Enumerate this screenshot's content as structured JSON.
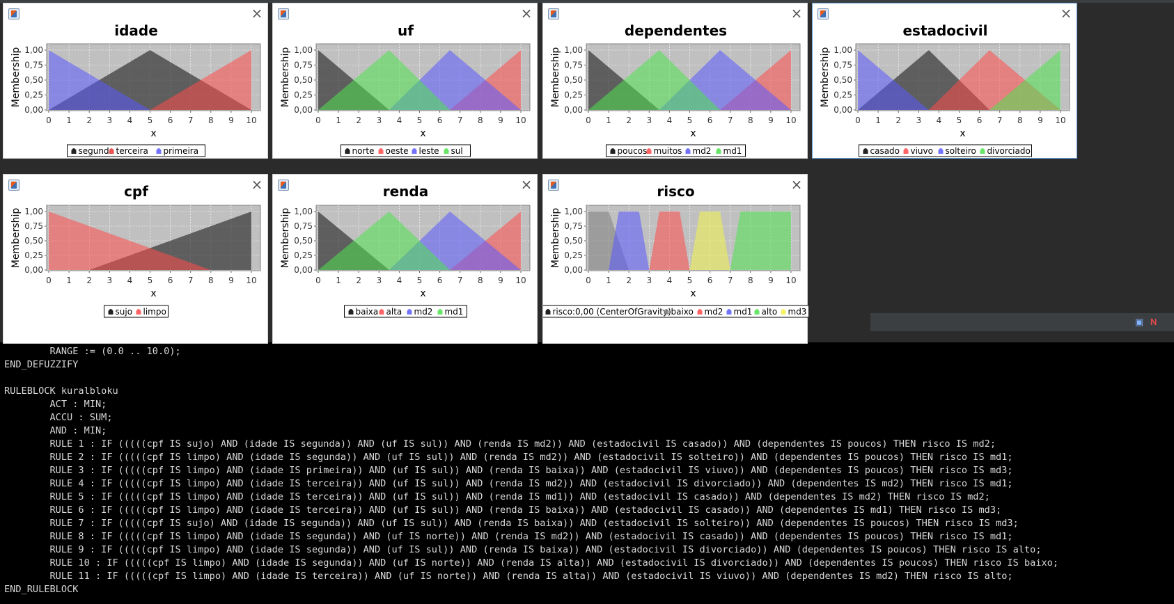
{
  "colors": {
    "plot_bg": "#c0c0c0",
    "grid": "#ffffff",
    "black": "#222222",
    "red": "#ff4a4a",
    "blue": "#5a5aff",
    "green": "#4fe24f",
    "gray": "#7e7e7e",
    "yellow": "#f2f24a"
  },
  "status_icons": [
    "monitor-icon",
    "netbeans-icon"
  ],
  "windows": [
    {
      "id": "idade",
      "close": "×",
      "chart_data": {
        "type": "area",
        "title": "idade",
        "xlabel": "x",
        "ylabel": "Membership",
        "xlim": [
          0,
          10
        ],
        "ylim": [
          0,
          1
        ],
        "x_ticks": [
          "0",
          "1",
          "2",
          "3",
          "4",
          "5",
          "6",
          "7",
          "8",
          "9",
          "10"
        ],
        "y_ticks": [
          "0,00",
          "0,25",
          "0,50",
          "0,75",
          "1,00"
        ],
        "series": [
          {
            "name": "segunda",
            "color": "black",
            "points": [
              [
                0,
                0
              ],
              [
                5,
                1
              ],
              [
                10,
                0
              ]
            ]
          },
          {
            "name": "terceira",
            "color": "red",
            "points": [
              [
                5,
                0
              ],
              [
                10,
                1
              ]
            ]
          },
          {
            "name": "primeira",
            "color": "blue",
            "points": [
              [
                0,
                1
              ],
              [
                5,
                0
              ]
            ]
          }
        ],
        "legend": [
          "segunda",
          "terceira",
          "primeira"
        ]
      }
    },
    {
      "id": "uf",
      "close": "×",
      "chart_data": {
        "type": "area",
        "title": "uf",
        "xlabel": "x",
        "ylabel": "Membership",
        "xlim": [
          0,
          10
        ],
        "ylim": [
          0,
          1
        ],
        "x_ticks": [
          "0",
          "1",
          "2",
          "3",
          "4",
          "5",
          "6",
          "7",
          "8",
          "9",
          "10"
        ],
        "y_ticks": [
          "0,00",
          "0,25",
          "0,50",
          "0,75",
          "1,00"
        ],
        "series": [
          {
            "name": "norte",
            "color": "black",
            "points": [
              [
                0,
                1
              ],
              [
                3.5,
                0
              ]
            ]
          },
          {
            "name": "oeste",
            "color": "red",
            "points": [
              [
                6.5,
                0
              ],
              [
                10,
                1
              ]
            ]
          },
          {
            "name": "leste",
            "color": "blue",
            "points": [
              [
                3.5,
                0
              ],
              [
                6.5,
                1
              ],
              [
                10,
                0
              ]
            ]
          },
          {
            "name": "sul",
            "color": "green",
            "points": [
              [
                0,
                0
              ],
              [
                3.5,
                1
              ],
              [
                6.5,
                0
              ]
            ]
          }
        ],
        "legend": [
          "norte",
          "oeste",
          "leste",
          "sul"
        ]
      }
    },
    {
      "id": "dependentes",
      "close": "×",
      "chart_data": {
        "type": "area",
        "title": "dependentes",
        "xlabel": "x",
        "ylabel": "Membership",
        "xlim": [
          0,
          10
        ],
        "ylim": [
          0,
          1
        ],
        "x_ticks": [
          "0",
          "1",
          "2",
          "3",
          "4",
          "5",
          "6",
          "7",
          "8",
          "9",
          "10"
        ],
        "y_ticks": [
          "0,00",
          "0,25",
          "0,50",
          "0,75",
          "1,00"
        ],
        "series": [
          {
            "name": "poucos",
            "color": "black",
            "points": [
              [
                0,
                1
              ],
              [
                3.5,
                0
              ]
            ]
          },
          {
            "name": "muitos",
            "color": "red",
            "points": [
              [
                6.5,
                0
              ],
              [
                10,
                1
              ]
            ]
          },
          {
            "name": "md2",
            "color": "blue",
            "points": [
              [
                3.5,
                0
              ],
              [
                6.5,
                1
              ],
              [
                10,
                0
              ]
            ]
          },
          {
            "name": "md1",
            "color": "green",
            "points": [
              [
                0,
                0
              ],
              [
                3.5,
                1
              ],
              [
                6.5,
                0
              ]
            ]
          }
        ],
        "legend": [
          "poucos",
          "muitos",
          "md2",
          "md1"
        ]
      }
    },
    {
      "id": "estadocivil",
      "close": "×",
      "active": true,
      "chart_data": {
        "type": "area",
        "title": "estadocivil",
        "xlabel": "x",
        "ylabel": "Membership",
        "xlim": [
          0,
          10
        ],
        "ylim": [
          0,
          1
        ],
        "x_ticks": [
          "0",
          "1",
          "2",
          "3",
          "4",
          "5",
          "6",
          "7",
          "8",
          "9",
          "10"
        ],
        "y_ticks": [
          "0,00",
          "0,25",
          "0,50",
          "0,75",
          "1,00"
        ],
        "series": [
          {
            "name": "casado",
            "color": "black",
            "points": [
              [
                0,
                0
              ],
              [
                3.5,
                1
              ],
              [
                6.5,
                0
              ]
            ]
          },
          {
            "name": "viuvo",
            "color": "red",
            "points": [
              [
                3.5,
                0
              ],
              [
                6.5,
                1
              ],
              [
                10,
                0
              ]
            ]
          },
          {
            "name": "solteiro",
            "color": "blue",
            "points": [
              [
                0,
                1
              ],
              [
                3.5,
                0
              ]
            ]
          },
          {
            "name": "divorciado",
            "color": "green",
            "points": [
              [
                6.5,
                0
              ],
              [
                10,
                1
              ]
            ]
          }
        ],
        "legend": [
          "casado",
          "viuvo",
          "solteiro",
          "divorciado"
        ]
      }
    },
    {
      "id": "cpf",
      "close": "×",
      "chart_data": {
        "type": "area",
        "title": "cpf",
        "xlabel": "x",
        "ylabel": "Membership",
        "xlim": [
          0,
          10
        ],
        "ylim": [
          0,
          1
        ],
        "x_ticks": [
          "0",
          "1",
          "2",
          "3",
          "4",
          "5",
          "6",
          "7",
          "8",
          "9",
          "10"
        ],
        "y_ticks": [
          "0,00",
          "0,25",
          "0,50",
          "0,75",
          "1,00"
        ],
        "series": [
          {
            "name": "sujo",
            "color": "black",
            "points": [
              [
                2,
                0
              ],
              [
                10,
                1
              ]
            ]
          },
          {
            "name": "limpo",
            "color": "red",
            "points": [
              [
                0,
                1
              ],
              [
                8,
                0
              ]
            ]
          }
        ],
        "legend": [
          "sujo",
          "limpo"
        ]
      }
    },
    {
      "id": "renda",
      "close": "×",
      "chart_data": {
        "type": "area",
        "title": "renda",
        "xlabel": "x",
        "ylabel": "Membership",
        "xlim": [
          0,
          10
        ],
        "ylim": [
          0,
          1
        ],
        "x_ticks": [
          "0",
          "1",
          "2",
          "3",
          "4",
          "5",
          "6",
          "7",
          "8",
          "9",
          "10"
        ],
        "y_ticks": [
          "0,00",
          "0,25",
          "0,50",
          "0,75",
          "1,00"
        ],
        "series": [
          {
            "name": "baixa",
            "color": "black",
            "points": [
              [
                0,
                1
              ],
              [
                3.5,
                0
              ]
            ]
          },
          {
            "name": "alta",
            "color": "red",
            "points": [
              [
                6.5,
                0
              ],
              [
                10,
                1
              ]
            ]
          },
          {
            "name": "md2",
            "color": "blue",
            "points": [
              [
                3.5,
                0
              ],
              [
                6.5,
                1
              ],
              [
                10,
                0
              ]
            ]
          },
          {
            "name": "md1",
            "color": "green",
            "points": [
              [
                0,
                0
              ],
              [
                3.5,
                1
              ],
              [
                6.5,
                0
              ]
            ]
          }
        ],
        "legend": [
          "baixa",
          "alta",
          "md2",
          "md1"
        ]
      }
    },
    {
      "id": "risco",
      "close": "×",
      "chart_data": {
        "type": "area",
        "title": "risco",
        "xlabel": "x",
        "ylabel": "Membership",
        "xlim": [
          0,
          10
        ],
        "ylim": [
          0,
          1
        ],
        "x_ticks": [
          "0",
          "1",
          "2",
          "3",
          "4",
          "5",
          "6",
          "7",
          "8",
          "9",
          "10"
        ],
        "y_ticks": [
          "0,00",
          "0,25",
          "0,50",
          "0,75",
          "1,00"
        ],
        "series": [
          {
            "name": "risco:0,00 (CenterOfGravity)",
            "color": "black",
            "points": [
              [
                0,
                0
              ],
              [
                10,
                0
              ]
            ]
          },
          {
            "name": "baixo",
            "color": "gray",
            "points": [
              [
                0,
                1
              ],
              [
                1,
                1
              ],
              [
                2,
                0
              ]
            ]
          },
          {
            "name": "md2",
            "color": "red",
            "points": [
              [
                3,
                0
              ],
              [
                3.5,
                1
              ],
              [
                4.5,
                1
              ],
              [
                5,
                0
              ]
            ]
          },
          {
            "name": "md1",
            "color": "blue",
            "points": [
              [
                1,
                0
              ],
              [
                1.5,
                1
              ],
              [
                2.5,
                1
              ],
              [
                3,
                0
              ]
            ]
          },
          {
            "name": "alto",
            "color": "green",
            "points": [
              [
                7,
                0
              ],
              [
                7.5,
                1
              ],
              [
                10,
                1
              ]
            ]
          },
          {
            "name": "md3",
            "color": "yellow",
            "points": [
              [
                5,
                0
              ],
              [
                5.5,
                1
              ],
              [
                6.5,
                1
              ],
              [
                7,
                0
              ]
            ]
          }
        ],
        "legend": [
          "risco:0,00 (CenterOfGravity)",
          "baixo",
          "md2",
          "md1",
          "alto",
          "md3"
        ]
      }
    }
  ],
  "console": {
    "lines": [
      "        RANGE := (0.0 .. 10.0);",
      "END_DEFUZZIFY",
      "",
      "RULEBLOCK kuralbloku",
      "        ACT : MIN;",
      "        ACCU : SUM;",
      "        AND : MIN;",
      "        RULE 1 : IF (((((cpf IS sujo) AND (idade IS segunda)) AND (uf IS sul)) AND (renda IS md2)) AND (estadocivil IS casado)) AND (dependentes IS poucos) THEN risco IS md2;",
      "        RULE 2 : IF (((((cpf IS limpo) AND (idade IS segunda)) AND (uf IS sul)) AND (renda IS md2)) AND (estadocivil IS solteiro)) AND (dependentes IS poucos) THEN risco IS md1;",
      "        RULE 3 : IF (((((cpf IS limpo) AND (idade IS primeira)) AND (uf IS sul)) AND (renda IS baixa)) AND (estadocivil IS viuvo)) AND (dependentes IS poucos) THEN risco IS md3;",
      "        RULE 4 : IF (((((cpf IS limpo) AND (idade IS terceira)) AND (uf IS sul)) AND (renda IS md2)) AND (estadocivil IS divorciado)) AND (dependentes IS md2) THEN risco IS md1;",
      "        RULE 5 : IF (((((cpf IS limpo) AND (idade IS terceira)) AND (uf IS sul)) AND (renda IS md1)) AND (estadocivil IS casado)) AND (dependentes IS md2) THEN risco IS md2;",
      "        RULE 6 : IF (((((cpf IS limpo) AND (idade IS terceira)) AND (uf IS sul)) AND (renda IS baixa)) AND (estadocivil IS casado)) AND (dependentes IS md1) THEN risco IS md3;",
      "        RULE 7 : IF (((((cpf IS sujo) AND (idade IS segunda)) AND (uf IS sul)) AND (renda IS baixa)) AND (estadocivil IS solteiro)) AND (dependentes IS poucos) THEN risco IS md3;",
      "        RULE 8 : IF (((((cpf IS limpo) AND (idade IS segunda)) AND (uf IS norte)) AND (renda IS md2)) AND (estadocivil IS casado)) AND (dependentes IS poucos) THEN risco IS md1;",
      "        RULE 9 : IF (((((cpf IS limpo) AND (idade IS segunda)) AND (uf IS sul)) AND (renda IS baixa)) AND (estadocivil IS divorciado)) AND (dependentes IS poucos) THEN risco IS alto;",
      "        RULE 10 : IF (((((cpf IS limpo) AND (idade IS segunda)) AND (uf IS norte)) AND (renda IS alta)) AND (estadocivil IS divorciado)) AND (dependentes IS poucos) THEN risco IS baixo;",
      "        RULE 11 : IF (((((cpf IS limpo) AND (idade IS terceira)) AND (uf IS norte)) AND (renda IS alta)) AND (estadocivil IS viuvo)) AND (dependentes IS md2) THEN risco IS alto;",
      "END_RULEBLOCK"
    ]
  }
}
